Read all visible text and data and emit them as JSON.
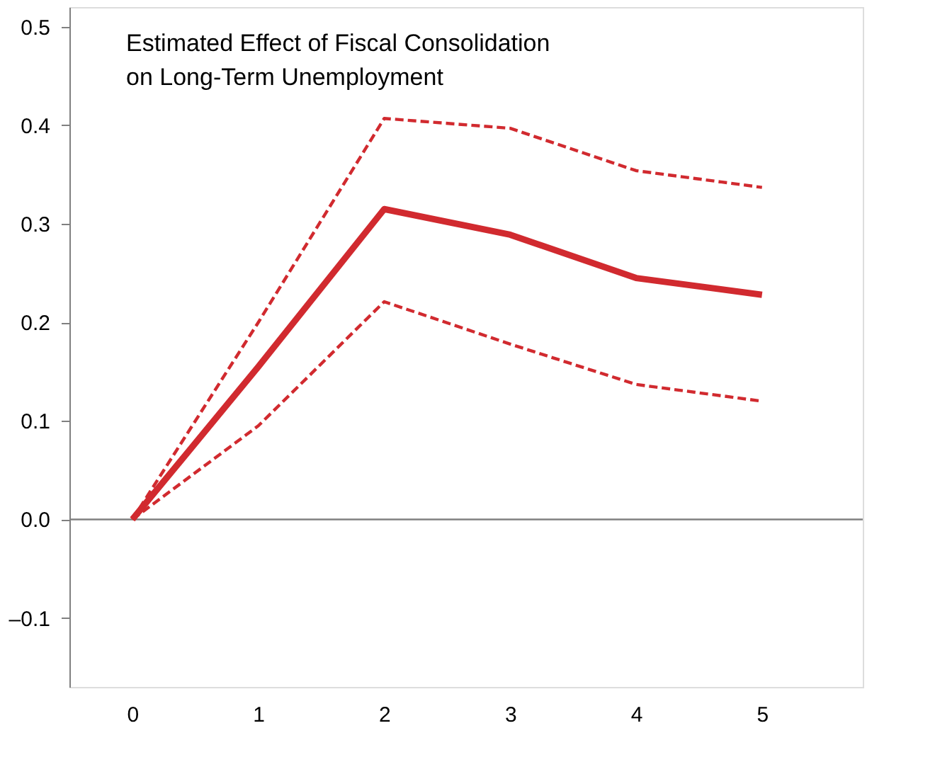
{
  "chart_data": {
    "type": "line",
    "title": "Estimated Effect of Fiscal Consolidation\non Long-Term Unemployment",
    "x": [
      0,
      1,
      2,
      3,
      4,
      5
    ],
    "series": [
      {
        "color": "#d12a2f",
        "values": [
          0,
          0.155,
          0.315,
          0.289,
          0.245,
          0.228
        ],
        "line_style": "solid"
      },
      {
        "color": "#d12a2f",
        "values": [
          0,
          0.2,
          0.407,
          0.397,
          0.354,
          0.337
        ],
        "line_style": "dashed"
      },
      {
        "color": "#d12a2f",
        "values": [
          0,
          0.095,
          0.221,
          0.178,
          0.137,
          0.12
        ],
        "line_style": "dashed"
      }
    ],
    "xlim": [
      -0.5,
      5.8
    ],
    "xticks": [
      0,
      1,
      2,
      3,
      4,
      5
    ],
    "ylim": [
      -0.17,
      0.52
    ],
    "yticks": [
      {
        "value": -0.1,
        "label": "–0.1"
      },
      {
        "value": 0,
        "label": "0.0"
      },
      {
        "value": 0.1,
        "label": "0.1"
      },
      {
        "value": 0.2,
        "label": "0.2"
      },
      {
        "value": 0.3,
        "label": "0.3"
      },
      {
        "value": 0.4,
        "label": "0.4"
      },
      {
        "value": 0.5,
        "label": "0.5"
      }
    ],
    "ref_lines": [
      {
        "axis": "y",
        "value": 0,
        "color": "#808080"
      }
    ],
    "grid": false,
    "marker": "none"
  }
}
